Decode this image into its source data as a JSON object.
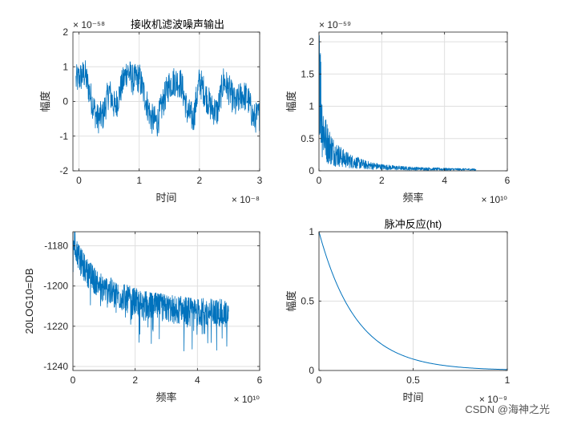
{
  "chart_data": [
    {
      "type": "line",
      "title": "接收机滤波噪声输出",
      "xlabel": "时间",
      "ylabel": "幅度",
      "xlim": [
        -0.1,
        3
      ],
      "ylim": [
        -2,
        2
      ],
      "xticks": [
        0,
        1,
        2,
        3
      ],
      "xtick_labels": [
        "0",
        "1",
        "2",
        "3"
      ],
      "yticks": [
        -2,
        -1,
        0,
        1,
        2
      ],
      "ytick_labels": [
        "-2",
        "-1",
        "0",
        "1",
        "2"
      ],
      "x_exponent": "× 10⁻⁸",
      "y_exponent": "× 10⁻⁵⁸",
      "grid": true,
      "color": "#0072BD",
      "series": [
        {
          "x": [
            -0.05,
            0.1,
            0.2,
            0.3,
            0.4,
            0.5,
            0.6,
            0.7,
            0.8,
            0.9,
            1.0,
            1.1,
            1.2,
            1.3,
            1.4,
            1.5,
            1.6,
            1.7,
            1.8,
            1.9,
            2.0,
            2.1,
            2.2,
            2.3,
            2.4,
            2.5,
            2.6,
            2.7,
            2.8,
            2.9,
            3.0
          ],
          "values": [
            0.6,
            0.8,
            0.1,
            -0.5,
            -0.4,
            0.3,
            -0.2,
            0.4,
            0.9,
            0.6,
            0.7,
            0.1,
            -0.5,
            -0.6,
            0.0,
            0.5,
            0.6,
            0.5,
            -0.3,
            -0.5,
            0.6,
            0.2,
            -0.2,
            -0.3,
            0.6,
            0.3,
            -0.1,
            0.2,
            0.1,
            -0.5,
            -0.4
          ]
        }
      ]
    },
    {
      "type": "line",
      "title": "",
      "xlabel": "频率",
      "ylabel": "幅度",
      "xlim": [
        0,
        6
      ],
      "ylim": [
        0,
        2.15
      ],
      "xticks": [
        0,
        2,
        4,
        6
      ],
      "xtick_labels": [
        "0",
        "2",
        "4",
        "6"
      ],
      "yticks": [
        0,
        0.5,
        1,
        1.5,
        2
      ],
      "ytick_labels": [
        "0",
        "0.5",
        "1",
        "1.5",
        "2"
      ],
      "x_exponent": "× 10¹⁰",
      "y_exponent": "× 10⁻⁵⁹",
      "grid": true,
      "color": "#0072BD",
      "series": [
        {
          "x": [
            0.01,
            0.05,
            0.1,
            0.2,
            0.3,
            0.5,
            0.75,
            1.0,
            1.5,
            2.0,
            2.5,
            3.0,
            3.5,
            4.0,
            4.5,
            5.0
          ],
          "values": [
            2.1,
            1.2,
            0.75,
            0.5,
            0.4,
            0.28,
            0.2,
            0.15,
            0.09,
            0.06,
            0.045,
            0.035,
            0.03,
            0.025,
            0.022,
            0.02
          ]
        }
      ]
    },
    {
      "type": "line",
      "title": "",
      "xlabel": "频率",
      "ylabel": "20LOG10=DB",
      "xlim": [
        0,
        6
      ],
      "ylim": [
        -1242,
        -1173
      ],
      "xticks": [
        0,
        2,
        4,
        6
      ],
      "xtick_labels": [
        "0",
        "2",
        "4",
        "6"
      ],
      "yticks": [
        -1240,
        -1220,
        -1200,
        -1180
      ],
      "ytick_labels": [
        "-1240",
        "-1220",
        "-1200",
        "-1180"
      ],
      "x_exponent": "× 10¹⁰",
      "y_exponent": "",
      "grid": true,
      "color": "#0072BD",
      "series": [
        {
          "x": [
            0.0,
            0.1,
            0.25,
            0.5,
            0.75,
            1.0,
            1.5,
            2.0,
            2.5,
            3.0,
            3.5,
            4.0,
            4.5,
            5.0
          ],
          "values": [
            -1175,
            -1182,
            -1188,
            -1194,
            -1198,
            -1201,
            -1205,
            -1208,
            -1210,
            -1211,
            -1212,
            -1213,
            -1213,
            -1214
          ]
        }
      ]
    },
    {
      "type": "line",
      "title": "脉冲反应(ht)",
      "xlabel": "时间",
      "ylabel": "幅度",
      "xlim": [
        0,
        1
      ],
      "ylim": [
        0,
        1
      ],
      "xticks": [
        0,
        0.5,
        1
      ],
      "xtick_labels": [
        "0",
        "0.5",
        "1"
      ],
      "yticks": [
        0,
        0.5,
        1
      ],
      "ytick_labels": [
        "0",
        "0.5",
        "1"
      ],
      "x_exponent": "× 10⁻⁹",
      "y_exponent": "",
      "grid": true,
      "color": "#0072BD",
      "series": [
        {
          "x": [
            0,
            0.05,
            0.1,
            0.15,
            0.2,
            0.25,
            0.3,
            0.35,
            0.4,
            0.45,
            0.5,
            0.6,
            0.7,
            0.8,
            0.9,
            1.0
          ],
          "values": [
            1.0,
            0.78,
            0.61,
            0.47,
            0.37,
            0.29,
            0.22,
            0.17,
            0.14,
            0.11,
            0.08,
            0.05,
            0.03,
            0.018,
            0.01,
            0.006
          ]
        }
      ]
    }
  ],
  "watermark": "CSDN @海神之光"
}
